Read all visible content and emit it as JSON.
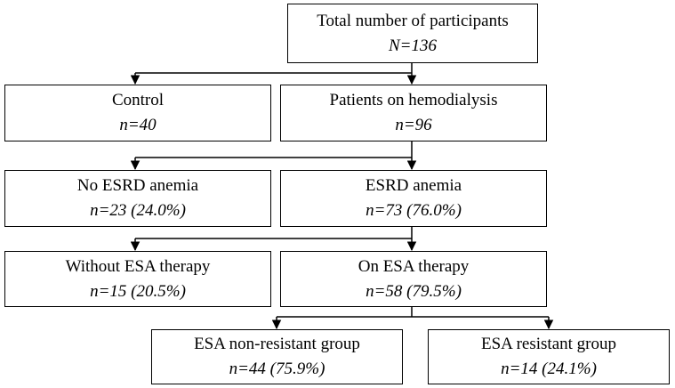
{
  "flowchart": {
    "total": {
      "label": "Total number of participants",
      "count": "N=136"
    },
    "control": {
      "label": "Control",
      "count": "n=40"
    },
    "hemodialysis": {
      "label": "Patients on hemodialysis",
      "count": "n=96"
    },
    "no_anemia": {
      "label": "No ESRD anemia",
      "count": "n=23 (24.0%)"
    },
    "anemia": {
      "label": "ESRD anemia",
      "count": "n=73 (76.0%)"
    },
    "without_esa": {
      "label": "Without ESA therapy",
      "count": "n=15 (20.5%)"
    },
    "on_esa": {
      "label": "On ESA therapy",
      "count": "n=58 (79.5%)"
    },
    "esa_nonresistant": {
      "label": "ESA non-resistant group",
      "count": "n=44 (75.9%)"
    },
    "esa_resistant": {
      "label": "ESA resistant group",
      "count": "n=14 (24.1%)"
    }
  }
}
